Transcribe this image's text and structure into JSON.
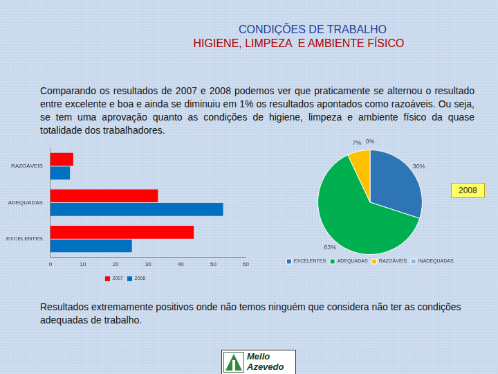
{
  "title": "CONDIÇÕES DE TRABALHO",
  "subtitle": "HIGIENE, LIMPEZA  E AMBIENTE FÍSICO",
  "intro": "Comparando os resultados de 2007 e 2008 podemos ver que praticamente se alternou o resultado entre excelente e boa e ainda se diminuiu  em 1% os resultados apontados como razoáveis. Ou seja, se tem uma aprovação quanto as condições de higiene, limpeza e ambiente físico da quase totalidade dos trabalhadores.",
  "conclusion": "Resultados extremamente positivos onde não temos ninguém que considera não ter as condições adequadas de trabalho.",
  "logo": [
    "Mello",
    "Azevedo"
  ],
  "chart_data": [
    {
      "type": "bar",
      "orientation": "horizontal",
      "categories": [
        "RAZOÁVEIS",
        "ADEQUADAS",
        "EXCELENTES"
      ],
      "series": [
        {
          "name": "2007",
          "color": "#ff0000",
          "values": [
            7,
            33,
            44
          ]
        },
        {
          "name": "2008",
          "color": "#0070c0",
          "values": [
            6,
            53,
            25
          ]
        }
      ],
      "xlim": [
        0,
        60
      ],
      "xticks": [
        0,
        10,
        20,
        30,
        40,
        50,
        60
      ],
      "grid": false,
      "legend": "bottom"
    },
    {
      "type": "pie",
      "title": "2008",
      "categories": [
        "EXCELENTES",
        "ADEQUADAS",
        "RAZOÁVEIS",
        "INADEQUADAS"
      ],
      "values": [
        30,
        63,
        7,
        0
      ],
      "value_labels": [
        "30%",
        "63%",
        "7%",
        "0%"
      ],
      "colors": [
        "#2e75b6",
        "#00b050",
        "#ffc000",
        "#8db4e2"
      ],
      "data_labels": true,
      "legend": "bottom"
    }
  ]
}
